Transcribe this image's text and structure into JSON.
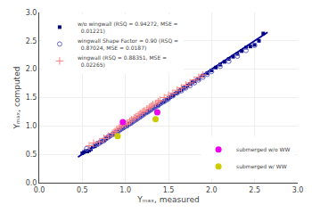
{
  "chart_data": {
    "type": "scatter",
    "xlabel": "Yₘₐₓ, measured",
    "ylabel": "Yₘₐₓ, computed",
    "xlim": [
      0,
      3
    ],
    "ylim": [
      0,
      3
    ],
    "xticks": [
      {
        "value": 0,
        "label": "0.0"
      },
      0.5,
      {
        "value": 1.0,
        "label": "1.0"
      },
      1.5,
      {
        "value": 2.0,
        "label": "2.0"
      },
      2.5,
      {
        "value": 3.0,
        "label": "3.0"
      }
    ],
    "yticks": [
      {
        "value": 0.0,
        "label": "0.0"
      },
      0.5,
      {
        "value": 1.0,
        "label": "1.0"
      },
      1.5,
      {
        "value": 2.0,
        "label": "2.0"
      },
      2.5,
      {
        "value": 3.0,
        "label": "3.0"
      }
    ],
    "grid": true,
    "series": [
      {
        "type": "line",
        "color": "#000099",
        "line_style": "solid",
        "x": [
          0.45,
          2.65
        ],
        "values": [
          0.45,
          2.65
        ]
      },
      {
        "name": "w/o wingwall (RSQ = 0.94272, MSE =\n  0.01221)",
        "type": "scatter",
        "marker": "square",
        "color": "#000080",
        "legend": "upper left",
        "x": [
          0.5,
          0.52,
          0.54,
          0.56,
          0.58,
          0.6,
          0.62,
          0.64,
          0.65,
          0.67,
          0.68,
          0.7,
          0.71,
          0.72,
          0.74,
          0.75,
          0.76,
          0.77,
          0.78,
          0.79,
          0.8,
          0.81,
          0.82,
          0.83,
          0.84,
          0.85,
          0.86,
          0.87,
          0.88,
          0.89,
          0.9,
          0.91,
          0.92,
          0.93,
          0.94,
          0.95,
          0.96,
          0.97,
          0.98,
          0.99,
          1.0,
          1.0,
          1.01,
          1.02,
          1.03,
          1.04,
          1.05,
          1.06,
          1.07,
          1.08,
          1.09,
          1.1,
          1.11,
          1.12,
          1.13,
          1.14,
          1.15,
          1.16,
          1.17,
          1.18,
          1.19,
          1.2,
          1.22,
          1.24,
          1.25,
          1.26,
          1.27,
          1.28,
          1.29,
          1.3,
          1.32,
          1.33,
          1.34,
          1.35,
          1.36,
          1.38,
          1.39,
          1.4,
          1.42,
          1.44,
          1.45,
          1.46,
          1.48,
          1.5,
          1.52,
          1.54,
          1.55,
          1.56,
          1.58,
          1.6,
          1.62,
          1.64,
          1.65,
          1.67,
          1.68,
          1.7,
          1.72,
          1.75,
          1.78,
          1.8,
          1.85,
          1.9,
          1.95,
          2.0,
          2.05,
          2.1,
          2.15,
          2.2,
          2.25,
          2.3,
          2.35,
          2.4,
          2.45,
          2.5,
          2.55,
          2.6
        ],
        "values": [
          0.52,
          0.54,
          0.56,
          0.55,
          0.57,
          0.59,
          0.63,
          0.64,
          0.65,
          0.67,
          0.7,
          0.7,
          0.72,
          0.72,
          0.74,
          0.75,
          0.76,
          0.77,
          0.78,
          0.79,
          0.8,
          0.81,
          0.82,
          0.83,
          0.84,
          0.85,
          0.86,
          0.87,
          0.88,
          0.89,
          0.9,
          0.91,
          0.91,
          0.93,
          0.93,
          0.94,
          0.95,
          0.96,
          0.97,
          0.98,
          0.99,
          1.01,
          1.0,
          1.0,
          1.02,
          1.03,
          1.04,
          1.04,
          1.06,
          1.07,
          1.08,
          1.09,
          1.1,
          1.11,
          1.12,
          1.13,
          1.14,
          1.15,
          1.16,
          1.17,
          1.18,
          1.2,
          1.22,
          1.23,
          1.24,
          1.25,
          1.26,
          1.27,
          1.28,
          1.3,
          1.31,
          1.32,
          1.33,
          1.34,
          1.35,
          1.37,
          1.38,
          1.39,
          1.41,
          1.43,
          1.44,
          1.45,
          1.47,
          1.49,
          1.51,
          1.53,
          1.54,
          1.55,
          1.57,
          1.59,
          1.61,
          1.63,
          1.64,
          1.66,
          1.67,
          1.69,
          1.71,
          1.74,
          1.77,
          1.79,
          1.83,
          1.89,
          1.93,
          1.98,
          2.03,
          2.08,
          2.13,
          2.18,
          2.22,
          2.27,
          2.32,
          2.38,
          2.4,
          2.43,
          2.5,
          2.63
        ]
      },
      {
        "name": "wingwall Shape Factor = 0.90 (RSQ =\n  0.87024, MSE = 0.0187)",
        "type": "scatter",
        "marker": "open circle",
        "color": "#6666CC",
        "legend": "upper left",
        "x": [
          0.55,
          0.6,
          0.65,
          0.68,
          0.7,
          0.72,
          0.75,
          0.78,
          0.8,
          0.82,
          0.85,
          0.87,
          0.88,
          0.9,
          0.92,
          0.93,
          0.95,
          0.97,
          1.0,
          1.02,
          1.05,
          1.07,
          1.08,
          1.1,
          1.12,
          1.13,
          1.15,
          1.17,
          1.18,
          1.2,
          1.22,
          1.25,
          1.27,
          1.28,
          1.3,
          1.32,
          1.33,
          1.35,
          1.38,
          1.4,
          1.42,
          1.45,
          1.48,
          1.5,
          1.55,
          1.6,
          1.65,
          1.7,
          1.75,
          1.8,
          1.85,
          1.9,
          1.95,
          2.0,
          2.1,
          2.2,
          2.3,
          2.4,
          2.5
        ],
        "values": [
          0.6,
          0.62,
          0.67,
          0.68,
          0.7,
          0.72,
          0.74,
          0.78,
          0.81,
          0.83,
          0.85,
          0.87,
          0.88,
          0.9,
          0.91,
          0.93,
          0.95,
          0.97,
          1.0,
          1.01,
          1.04,
          1.06,
          1.07,
          1.09,
          1.11,
          1.12,
          1.14,
          1.16,
          1.17,
          1.19,
          1.21,
          1.24,
          1.26,
          1.27,
          1.29,
          1.31,
          1.32,
          1.34,
          1.36,
          1.39,
          1.41,
          1.43,
          1.46,
          1.48,
          1.53,
          1.58,
          1.62,
          1.67,
          1.71,
          1.76,
          1.81,
          1.86,
          1.91,
          1.96,
          2.05,
          2.14,
          2.23,
          2.33,
          2.42
        ]
      },
      {
        "name": "wingwall (RSQ = 0.88351, MSE =\n  0.02265)",
        "type": "scatter",
        "marker": "plus",
        "color": "#FF8080",
        "legend": "upper left",
        "x": [
          0.58,
          0.63,
          0.7,
          0.75,
          0.8,
          0.85,
          0.88,
          0.9,
          0.93,
          0.95,
          0.97,
          1.0,
          1.02,
          1.05,
          1.07,
          1.1,
          1.12,
          1.15,
          1.17,
          1.2,
          1.22,
          1.25,
          1.28,
          1.3,
          1.32,
          1.35,
          1.38,
          1.4,
          1.45,
          1.5,
          1.55,
          1.6,
          1.65,
          1.7,
          1.75,
          1.8,
          1.85,
          1.9
        ],
        "values": [
          0.65,
          0.7,
          0.72,
          0.78,
          0.82,
          0.87,
          0.9,
          0.94,
          0.97,
          1.0,
          1.02,
          1.03,
          1.05,
          1.08,
          1.11,
          1.14,
          1.16,
          1.19,
          1.22,
          1.25,
          1.27,
          1.3,
          1.33,
          1.35,
          1.38,
          1.4,
          1.43,
          1.45,
          1.5,
          1.54,
          1.58,
          1.63,
          1.67,
          1.72,
          1.76,
          1.81,
          1.86,
          1.9
        ]
      },
      {
        "name": "submerged w/o WW",
        "type": "scatter",
        "marker": "circle",
        "color": "#EE00EE",
        "legend": "lower right",
        "x": [
          0.97,
          1.37
        ],
        "values": [
          1.07,
          1.24
        ]
      },
      {
        "name": "submerged w/ WW",
        "type": "scatter",
        "marker": "circle",
        "color": "#CCCC00",
        "legend": "lower right",
        "x": [
          0.91,
          1.35
        ],
        "values": [
          0.82,
          1.12
        ]
      }
    ]
  }
}
